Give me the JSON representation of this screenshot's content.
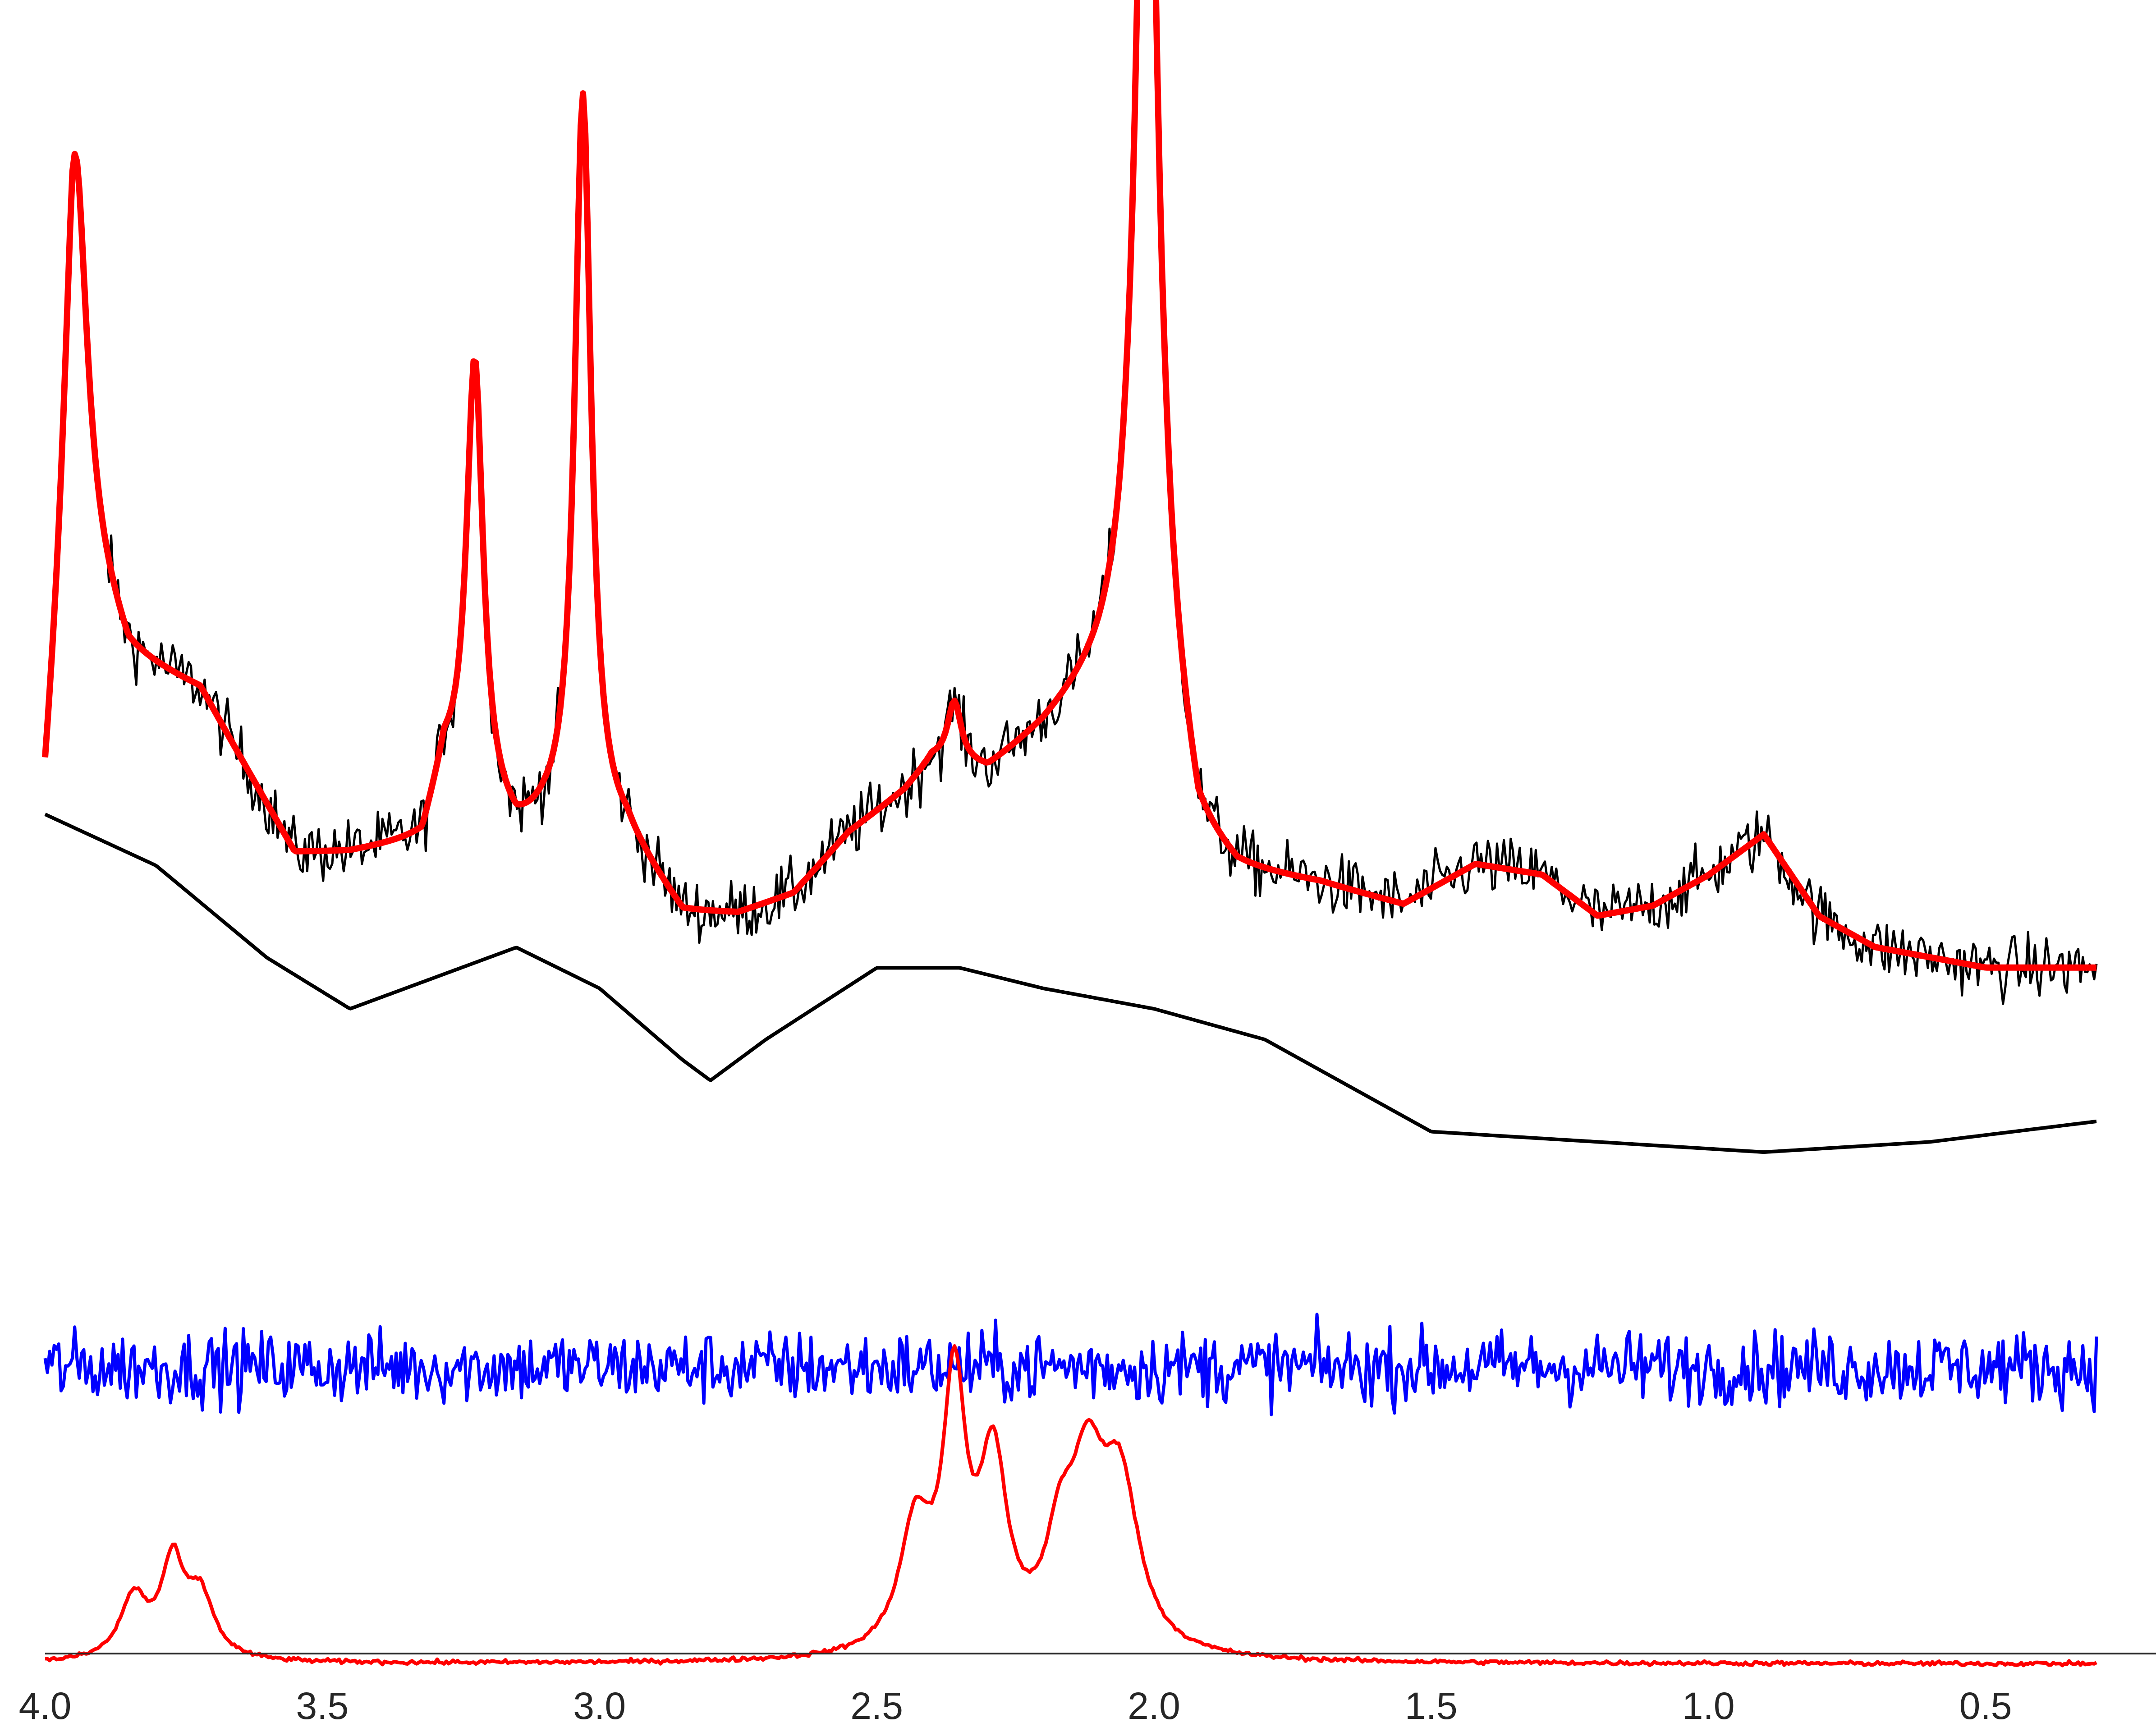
{
  "chart_data": {
    "type": "line",
    "title": "",
    "xlabel": "",
    "ylabel": "",
    "x_axis": {
      "range": [
        4.0,
        0.3
      ],
      "reversed": true,
      "ticks": [
        4.0,
        3.5,
        3.0,
        2.5,
        2.0,
        1.5,
        1.0,
        0.5
      ],
      "tick_labels": [
        "4.0",
        "3.5",
        "3.0",
        "2.5",
        "2.0",
        "1.5",
        "1.0",
        "0.5"
      ]
    },
    "y_axis": {
      "visible": false
    },
    "grid": false,
    "legend": "none",
    "series": [
      {
        "role": "measured-spectrum",
        "color": "#000000",
        "noise": 0.03,
        "baseline": [
          [
            4.0,
            0.47
          ],
          [
            3.95,
            0.75
          ],
          [
            3.85,
            0.63
          ],
          [
            3.72,
            0.6
          ],
          [
            3.55,
            0.44
          ],
          [
            3.45,
            0.44
          ],
          [
            3.32,
            0.45
          ],
          [
            3.28,
            0.52
          ],
          [
            3.15,
            0.45
          ],
          [
            3.1,
            0.46
          ],
          [
            3.02,
            0.46
          ],
          [
            2.95,
            0.45
          ],
          [
            2.85,
            0.38
          ],
          [
            2.75,
            0.38
          ],
          [
            2.65,
            0.4
          ],
          [
            2.55,
            0.46
          ],
          [
            2.45,
            0.5
          ],
          [
            2.4,
            0.53
          ],
          [
            2.3,
            0.52
          ],
          [
            2.2,
            0.56
          ],
          [
            2.1,
            0.61
          ],
          [
            2.05,
            0.64
          ],
          [
            1.98,
            0.6
          ],
          [
            1.92,
            0.45
          ],
          [
            1.85,
            0.42
          ],
          [
            1.7,
            0.41
          ],
          [
            1.55,
            0.39
          ],
          [
            1.42,
            0.43
          ],
          [
            1.3,
            0.42
          ],
          [
            1.2,
            0.38
          ],
          [
            1.1,
            0.39
          ],
          [
            1.0,
            0.42
          ],
          [
            0.9,
            0.46
          ],
          [
            0.8,
            0.38
          ],
          [
            0.7,
            0.35
          ],
          [
            0.5,
            0.33
          ],
          [
            0.3,
            0.33
          ]
        ],
        "peaks": [
          {
            "center": 3.945,
            "height": 0.38,
            "width": 0.025
          },
          {
            "center": 3.225,
            "height": 0.43,
            "width": 0.018
          },
          {
            "center": 3.03,
            "height": 0.72,
            "width": 0.018
          },
          {
            "center": 2.013,
            "height": 1.05,
            "width": 0.022
          },
          {
            "center": 2.36,
            "height": 0.06,
            "width": 0.015
          }
        ]
      },
      {
        "role": "fit",
        "color": "#ff0000",
        "baseline": [
          [
            4.0,
            0.47
          ],
          [
            3.95,
            0.75
          ],
          [
            3.85,
            0.63
          ],
          [
            3.72,
            0.6
          ],
          [
            3.55,
            0.44
          ],
          [
            3.45,
            0.44
          ],
          [
            3.32,
            0.45
          ],
          [
            3.28,
            0.52
          ],
          [
            3.15,
            0.45
          ],
          [
            3.1,
            0.46
          ],
          [
            3.02,
            0.46
          ],
          [
            2.95,
            0.45
          ],
          [
            2.85,
            0.38
          ],
          [
            2.75,
            0.38
          ],
          [
            2.65,
            0.4
          ],
          [
            2.55,
            0.46
          ],
          [
            2.45,
            0.5
          ],
          [
            2.4,
            0.53
          ],
          [
            2.3,
            0.52
          ],
          [
            2.2,
            0.56
          ],
          [
            2.1,
            0.61
          ],
          [
            2.05,
            0.64
          ],
          [
            1.98,
            0.6
          ],
          [
            1.92,
            0.45
          ],
          [
            1.85,
            0.42
          ],
          [
            1.7,
            0.41
          ],
          [
            1.55,
            0.39
          ],
          [
            1.42,
            0.43
          ],
          [
            1.3,
            0.42
          ],
          [
            1.2,
            0.38
          ],
          [
            1.1,
            0.39
          ],
          [
            1.0,
            0.42
          ],
          [
            0.9,
            0.46
          ],
          [
            0.8,
            0.38
          ],
          [
            0.7,
            0.35
          ],
          [
            0.5,
            0.33
          ],
          [
            0.3,
            0.33
          ]
        ],
        "peaks": [
          {
            "center": 3.945,
            "height": 0.38,
            "width": 0.025
          },
          {
            "center": 3.225,
            "height": 0.43,
            "width": 0.018
          },
          {
            "center": 3.03,
            "height": 0.72,
            "width": 0.018
          },
          {
            "center": 2.013,
            "height": 1.05,
            "width": 0.022
          },
          {
            "center": 2.36,
            "height": 0.06,
            "width": 0.015
          }
        ]
      },
      {
        "role": "baseline",
        "color": "#000000",
        "points": [
          [
            4.0,
            0.25
          ],
          [
            3.8,
            0.2
          ],
          [
            3.6,
            0.11
          ],
          [
            3.45,
            0.06
          ],
          [
            3.3,
            0.09
          ],
          [
            3.15,
            0.12
          ],
          [
            3.0,
            0.08
          ],
          [
            2.85,
            0.01
          ],
          [
            2.8,
            -0.01
          ],
          [
            2.7,
            0.03
          ],
          [
            2.5,
            0.1
          ],
          [
            2.35,
            0.1
          ],
          [
            2.2,
            0.08
          ],
          [
            2.0,
            0.06
          ],
          [
            1.8,
            0.03
          ],
          [
            1.5,
            -0.06
          ],
          [
            1.2,
            -0.07
          ],
          [
            0.9,
            -0.08
          ],
          [
            0.6,
            -0.07
          ],
          [
            0.3,
            -0.05
          ]
        ]
      },
      {
        "role": "residual",
        "color": "#0000ff",
        "center": -0.21,
        "amplitude": 0.035
      },
      {
        "role": "component-1",
        "color": "#ff0000",
        "offset": -0.5,
        "peaks": [
          {
            "center": 3.77,
            "height": 0.09,
            "width": 0.025
          },
          {
            "center": 3.84,
            "height": 0.06,
            "width": 0.03
          },
          {
            "center": 3.72,
            "height": 0.06,
            "width": 0.03
          },
          {
            "center": 2.43,
            "height": 0.12,
            "width": 0.035
          },
          {
            "center": 2.36,
            "height": 0.25,
            "width": 0.025
          },
          {
            "center": 2.29,
            "height": 0.18,
            "width": 0.03
          },
          {
            "center": 2.12,
            "height": 0.16,
            "width": 0.04
          },
          {
            "center": 2.06,
            "height": 0.15,
            "width": 0.04
          },
          {
            "center": 2.17,
            "height": 0.08,
            "width": 0.03
          }
        ]
      },
      {
        "role": "component-2",
        "color": "#ff0000",
        "offset": -0.64,
        "peaks": [
          {
            "center": 3.77,
            "height": 0.03,
            "width": 0.025
          },
          {
            "center": 3.82,
            "height": 0.02,
            "width": 0.03
          },
          {
            "center": 3.72,
            "height": 0.015,
            "width": 0.03
          },
          {
            "center": 2.46,
            "height": 0.06,
            "width": 0.03
          },
          {
            "center": 2.52,
            "height": 0.03,
            "width": 0.03
          },
          {
            "center": 2.38,
            "height": 0.04,
            "width": 0.025
          },
          {
            "center": 2.15,
            "height": 0.04,
            "width": 0.025
          },
          {
            "center": 2.08,
            "height": 0.05,
            "width": 0.025
          }
        ]
      }
    ]
  }
}
